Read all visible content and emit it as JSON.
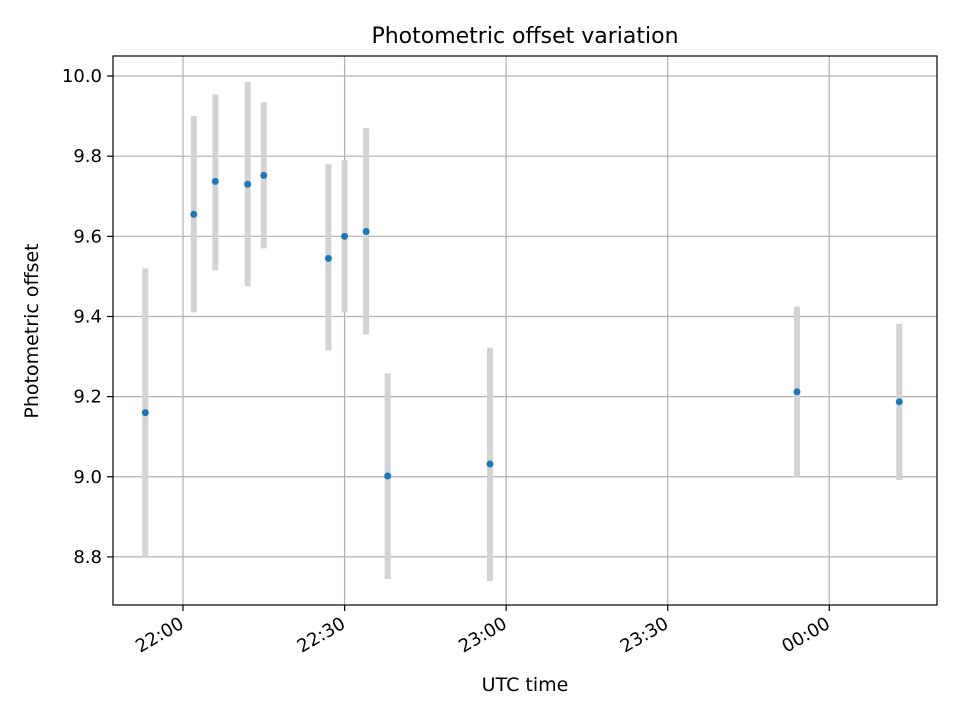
{
  "chart_data": {
    "type": "scatter",
    "title": "Photometric offset variation",
    "xlabel": "UTC time",
    "ylabel": "Photometric offset",
    "x_axis": {
      "ticks": [
        "22:00",
        "22:30",
        "23:00",
        "23:30",
        "00:00"
      ],
      "tick_minutes": [
        0,
        30,
        60,
        90,
        120
      ],
      "range_minutes": [
        -13,
        140
      ]
    },
    "y_axis": {
      "ticks": [
        "8.8",
        "9.0",
        "9.2",
        "9.4",
        "9.6",
        "9.8",
        "10.0"
      ],
      "tick_values": [
        8.8,
        9.0,
        9.2,
        9.4,
        9.6,
        9.8,
        10.0
      ],
      "range": [
        8.68,
        10.05
      ]
    },
    "grid": true,
    "colors": {
      "marker": "#1f77b4",
      "errorbar": "#d3d3d3",
      "grid": "#b0b0b0"
    },
    "points": [
      {
        "t": "21:53",
        "y": 9.16,
        "low": 8.8,
        "high": 9.52
      },
      {
        "t": "22:02",
        "y": 9.655,
        "low": 9.41,
        "high": 9.9
      },
      {
        "t": "22:06",
        "y": 9.737,
        "low": 9.515,
        "high": 9.955
      },
      {
        "t": "22:12",
        "y": 9.73,
        "low": 9.475,
        "high": 9.985
      },
      {
        "t": "22:15",
        "y": 9.752,
        "low": 9.57,
        "high": 9.935
      },
      {
        "t": "22:27",
        "y": 9.545,
        "low": 9.315,
        "high": 9.78
      },
      {
        "t": "22:30",
        "y": 9.6,
        "low": 9.41,
        "high": 9.79
      },
      {
        "t": "22:34",
        "y": 9.612,
        "low": 9.355,
        "high": 9.87
      },
      {
        "t": "22:38",
        "y": 9.002,
        "low": 8.745,
        "high": 9.258
      },
      {
        "t": "22:57",
        "y": 9.032,
        "low": 8.74,
        "high": 9.322
      },
      {
        "t": "23:54",
        "y": 9.212,
        "low": 9.0,
        "high": 9.425
      },
      {
        "t": "00:13",
        "y": 9.187,
        "low": 8.992,
        "high": 9.382
      }
    ]
  }
}
